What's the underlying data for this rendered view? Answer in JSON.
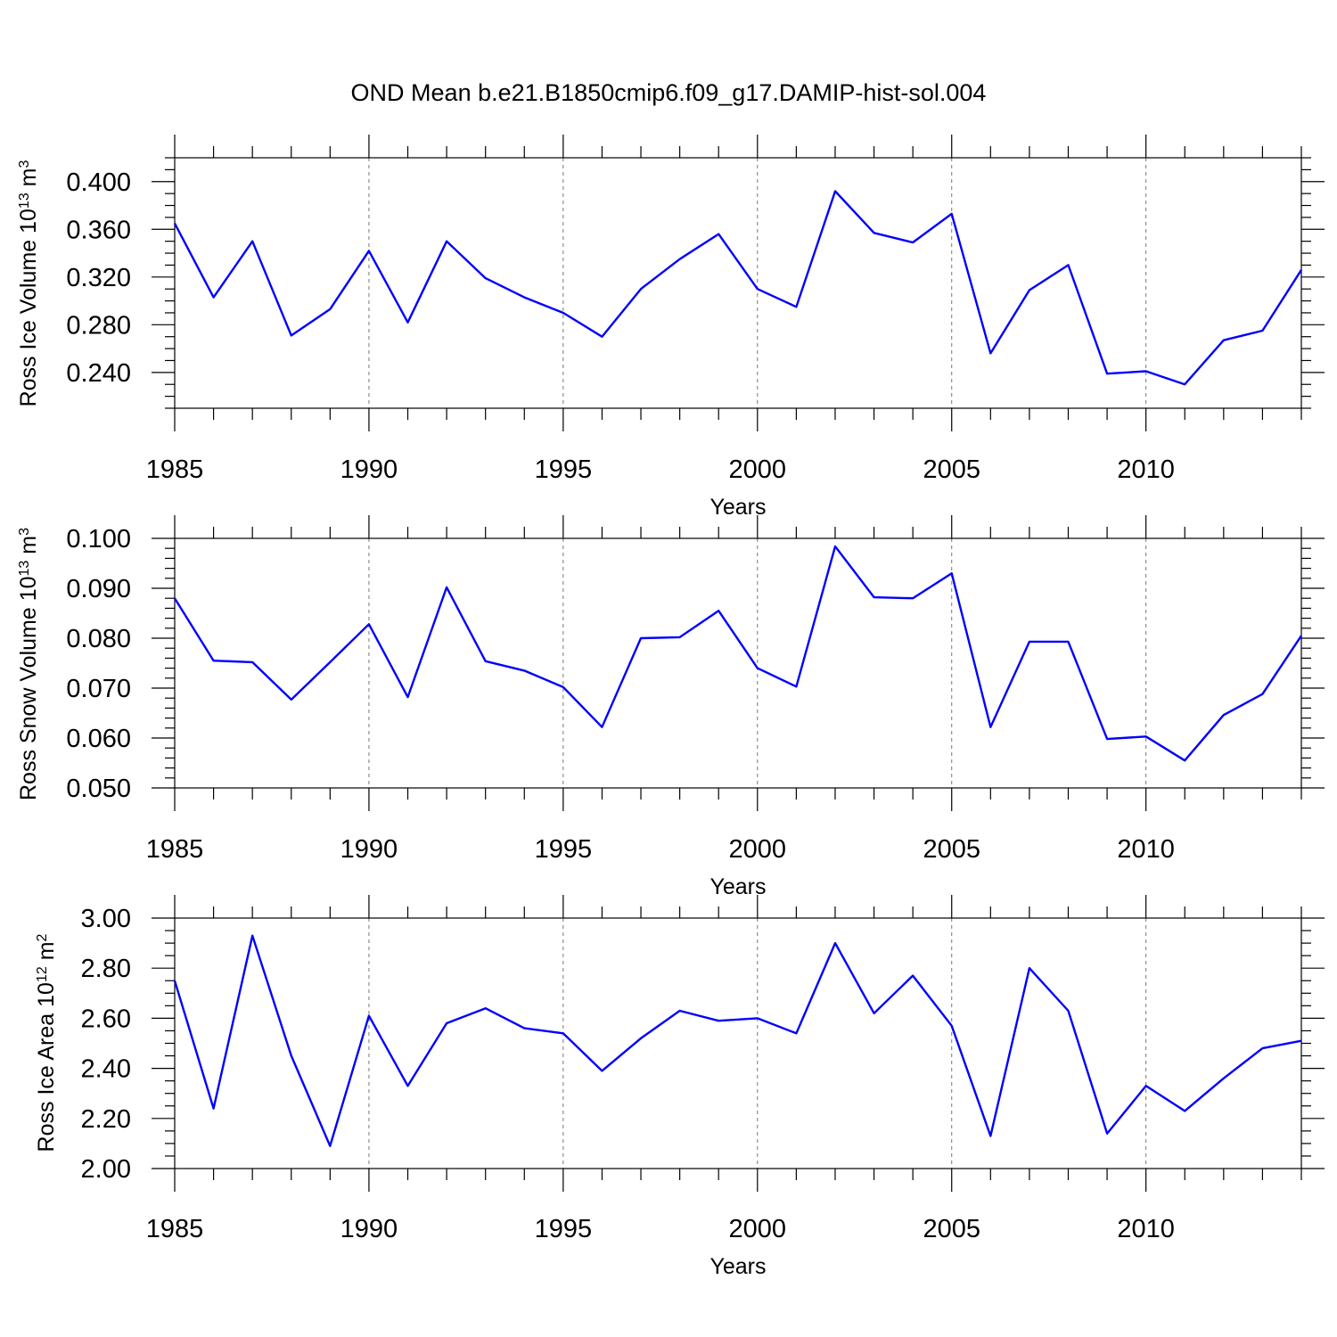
{
  "title": "OND Mean b.e21.B1850cmip6.f09_g17.DAMIP-hist-sol.004",
  "colors": {
    "line": "#0000ff",
    "frame": "#000000",
    "grid": "#777777"
  },
  "chart_data": [
    {
      "type": "line",
      "ylabel_main": "Ross Ice Volume 10",
      "ylabel_exp": "13",
      "ylabel_unit": " m",
      "ylabel_unit_exp": "3",
      "xlabel": "Years",
      "xlim": [
        1985,
        2014
      ],
      "ylim": [
        0.21,
        0.42
      ],
      "yticks": [
        0.24,
        0.28,
        0.32,
        0.36,
        0.4
      ],
      "ytick_labels": [
        "0.240",
        "0.280",
        "0.320",
        "0.360",
        "0.400"
      ],
      "yminor_step": 0.01,
      "xticks": [
        1985,
        1990,
        1995,
        2000,
        2005,
        2010
      ],
      "xtick_labels": [
        "1985",
        "1990",
        "1995",
        "2000",
        "2005",
        "2010"
      ],
      "grid": "vertical dashed at major x ticks",
      "x": [
        1985,
        1986,
        1987,
        1988,
        1989,
        1990,
        1991,
        1992,
        1993,
        1994,
        1995,
        1996,
        1997,
        1998,
        1999,
        2000,
        2001,
        2002,
        2003,
        2004,
        2005,
        2006,
        2007,
        2008,
        2009,
        2010,
        2011,
        2012,
        2013,
        2014
      ],
      "values": [
        0.365,
        0.303,
        0.35,
        0.271,
        0.293,
        0.342,
        0.282,
        0.35,
        0.319,
        0.303,
        0.29,
        0.27,
        0.31,
        0.335,
        0.356,
        0.31,
        0.295,
        0.392,
        0.357,
        0.349,
        0.373,
        0.256,
        0.309,
        0.33,
        0.239,
        0.241,
        0.23,
        0.267,
        0.275,
        0.326
      ]
    },
    {
      "type": "line",
      "ylabel_main": "Ross Snow Volume 10",
      "ylabel_exp": "13",
      "ylabel_unit": " m",
      "ylabel_unit_exp": "3",
      "xlabel": "Years",
      "xlim": [
        1985,
        2014
      ],
      "ylim": [
        0.05,
        0.1
      ],
      "yticks": [
        0.05,
        0.06,
        0.07,
        0.08,
        0.09,
        0.1
      ],
      "ytick_labels": [
        "0.050",
        "0.060",
        "0.070",
        "0.080",
        "0.090",
        "0.100"
      ],
      "yminor_step": 0.002,
      "xticks": [
        1985,
        1990,
        1995,
        2000,
        2005,
        2010
      ],
      "xtick_labels": [
        "1985",
        "1990",
        "1995",
        "2000",
        "2005",
        "2010"
      ],
      "grid": "vertical dashed at major x ticks",
      "x": [
        1985,
        1986,
        1987,
        1988,
        1989,
        1990,
        1991,
        1992,
        1993,
        1994,
        1995,
        1996,
        1997,
        1998,
        1999,
        2000,
        2001,
        2002,
        2003,
        2004,
        2005,
        2006,
        2007,
        2008,
        2009,
        2010,
        2011,
        2012,
        2013,
        2014
      ],
      "values": [
        0.088,
        0.0755,
        0.0752,
        0.0677,
        0.0752,
        0.0828,
        0.0682,
        0.0902,
        0.0754,
        0.0735,
        0.0702,
        0.0622,
        0.08,
        0.0802,
        0.0855,
        0.074,
        0.0703,
        0.0984,
        0.0882,
        0.088,
        0.093,
        0.0622,
        0.0793,
        0.0793,
        0.0598,
        0.0603,
        0.0555,
        0.0646,
        0.0688,
        0.0805
      ]
    },
    {
      "type": "line",
      "ylabel_main": "Ross Ice Area 10",
      "ylabel_exp": "12",
      "ylabel_unit": " m",
      "ylabel_unit_exp": "2",
      "xlabel": "Years",
      "xlim": [
        1985,
        2014
      ],
      "ylim": [
        2.0,
        3.0
      ],
      "yticks": [
        2.0,
        2.2,
        2.4,
        2.6,
        2.8,
        3.0
      ],
      "ytick_labels": [
        "2.00",
        "2.20",
        "2.40",
        "2.60",
        "2.80",
        "3.00"
      ],
      "yminor_step": 0.05,
      "xticks": [
        1985,
        1990,
        1995,
        2000,
        2005,
        2010
      ],
      "xtick_labels": [
        "1985",
        "1990",
        "1995",
        "2000",
        "2005",
        "2010"
      ],
      "grid": "vertical dashed at major x ticks",
      "x": [
        1985,
        1986,
        1987,
        1988,
        1989,
        1990,
        1991,
        1992,
        1993,
        1994,
        1995,
        1996,
        1997,
        1998,
        1999,
        2000,
        2001,
        2002,
        2003,
        2004,
        2005,
        2006,
        2007,
        2008,
        2009,
        2010,
        2011,
        2012,
        2013,
        2014
      ],
      "values": [
        2.75,
        2.24,
        2.93,
        2.45,
        2.09,
        2.61,
        2.33,
        2.58,
        2.64,
        2.56,
        2.54,
        2.39,
        2.52,
        2.63,
        2.59,
        2.6,
        2.54,
        2.9,
        2.62,
        2.77,
        2.57,
        2.13,
        2.8,
        2.63,
        2.14,
        2.33,
        2.23,
        2.36,
        2.48,
        2.51
      ]
    }
  ]
}
